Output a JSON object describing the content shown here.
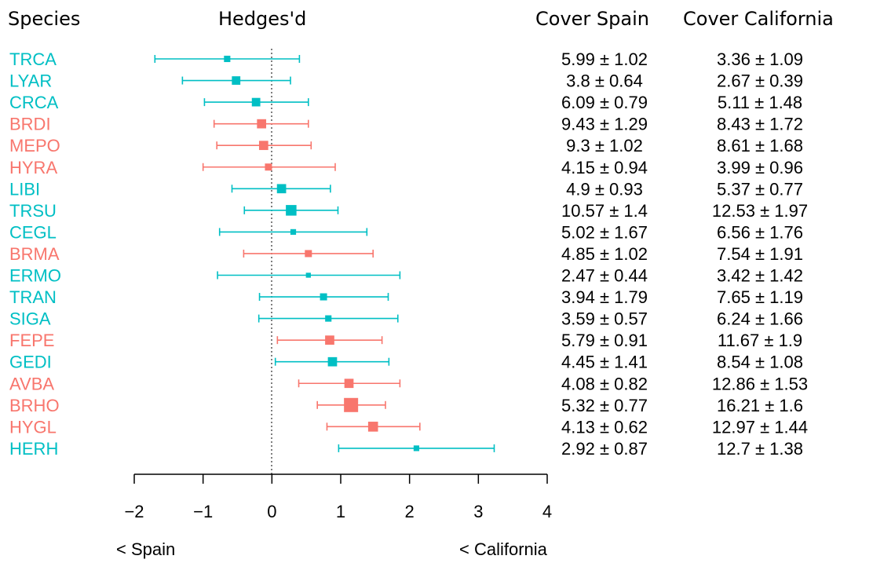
{
  "headers": {
    "species": "Species",
    "effect": "Hedges'd",
    "cover_spain": "Cover Spain",
    "cover_california": "Cover California"
  },
  "direction_labels": {
    "left": "< Spain",
    "right": "< California"
  },
  "colors": {
    "group_a": "#00BFC4",
    "group_b": "#F8766D"
  },
  "chart_data": {
    "type": "forest",
    "xlim": [
      -2,
      4
    ],
    "ticks": [
      -2,
      -1,
      0,
      1,
      2,
      3,
      4
    ],
    "tick_labels": [
      "−2",
      "−1",
      "0",
      "1",
      "2",
      "3",
      "4"
    ],
    "reference_line": 0,
    "rows": [
      {
        "species": "TRCA",
        "group": "a",
        "d": -0.65,
        "lo": -1.7,
        "hi": 0.4,
        "w": 0.9,
        "spain": "5.99 ± 1.02",
        "california": "3.36 ± 1.09"
      },
      {
        "species": "LYAR",
        "group": "a",
        "d": -0.52,
        "lo": -1.3,
        "hi": 0.27,
        "w": 1.2,
        "spain": "3.8 ± 0.64",
        "california": "2.67 ± 0.39"
      },
      {
        "species": "CRCA",
        "group": "a",
        "d": -0.23,
        "lo": -0.98,
        "hi": 0.53,
        "w": 1.2,
        "spain": "6.09 ± 0.79",
        "california": "5.11 ± 1.48"
      },
      {
        "species": "BRDI",
        "group": "b",
        "d": -0.15,
        "lo": -0.84,
        "hi": 0.53,
        "w": 1.3,
        "spain": "9.43 ± 1.29",
        "california": "8.43 ± 1.72"
      },
      {
        "species": "MEPO",
        "group": "b",
        "d": -0.12,
        "lo": -0.8,
        "hi": 0.57,
        "w": 1.3,
        "spain": "9.3 ± 1.02",
        "california": "8.61 ± 1.68"
      },
      {
        "species": "HYRA",
        "group": "b",
        "d": -0.05,
        "lo": -1.0,
        "hi": 0.92,
        "w": 1.0,
        "spain": "4.15 ± 0.94",
        "california": "3.99 ± 0.96"
      },
      {
        "species": "LIBI",
        "group": "a",
        "d": 0.14,
        "lo": -0.58,
        "hi": 0.85,
        "w": 1.3,
        "spain": "4.9 ± 0.93",
        "california": "5.37 ± 0.77"
      },
      {
        "species": "TRSU",
        "group": "a",
        "d": 0.28,
        "lo": -0.4,
        "hi": 0.96,
        "w": 1.5,
        "spain": "10.57 ± 1.4",
        "california": "12.53 ± 1.97"
      },
      {
        "species": "CEGL",
        "group": "a",
        "d": 0.31,
        "lo": -0.76,
        "hi": 1.38,
        "w": 0.8,
        "spain": "5.02 ± 1.67",
        "california": "6.56 ± 1.76"
      },
      {
        "species": "BRMA",
        "group": "b",
        "d": 0.53,
        "lo": -0.41,
        "hi": 1.47,
        "w": 1.0,
        "spain": "4.85 ± 1.02",
        "california": "7.54 ± 1.91"
      },
      {
        "species": "ERMO",
        "group": "a",
        "d": 0.53,
        "lo": -0.79,
        "hi": 1.86,
        "w": 0.7,
        "spain": "2.47 ± 0.44",
        "california": "3.42 ± 1.42"
      },
      {
        "species": "TRAN",
        "group": "a",
        "d": 0.75,
        "lo": -0.18,
        "hi": 1.69,
        "w": 1.0,
        "spain": "3.94 ± 1.79",
        "california": "7.65 ± 1.19"
      },
      {
        "species": "SIGA",
        "group": "a",
        "d": 0.82,
        "lo": -0.19,
        "hi": 1.83,
        "w": 0.9,
        "spain": "3.59 ± 0.57",
        "california": "6.24 ± 1.66"
      },
      {
        "species": "FEPE",
        "group": "b",
        "d": 0.84,
        "lo": 0.08,
        "hi": 1.6,
        "w": 1.3,
        "spain": "5.79 ± 0.91",
        "california": "11.67 ± 1.9"
      },
      {
        "species": "GEDI",
        "group": "a",
        "d": 0.88,
        "lo": 0.05,
        "hi": 1.7,
        "w": 1.3,
        "spain": "4.45 ± 1.41",
        "california": "8.54 ± 1.08"
      },
      {
        "species": "AVBA",
        "group": "b",
        "d": 1.12,
        "lo": 0.39,
        "hi": 1.86,
        "w": 1.3,
        "spain": "4.08 ± 0.82",
        "california": "12.86 ± 1.53"
      },
      {
        "species": "BRHO",
        "group": "b",
        "d": 1.15,
        "lo": 0.66,
        "hi": 1.65,
        "w": 2.0,
        "spain": "5.32 ± 0.77",
        "california": "16.21 ± 1.6"
      },
      {
        "species": "HYGL",
        "group": "b",
        "d": 1.47,
        "lo": 0.8,
        "hi": 2.15,
        "w": 1.4,
        "spain": "4.13 ± 0.62",
        "california": "12.97 ± 1.44"
      },
      {
        "species": "HERH",
        "group": "a",
        "d": 2.1,
        "lo": 0.97,
        "hi": 3.23,
        "w": 0.8,
        "spain": "2.92 ± 0.87",
        "california": "12.7 ± 1.38"
      }
    ]
  }
}
